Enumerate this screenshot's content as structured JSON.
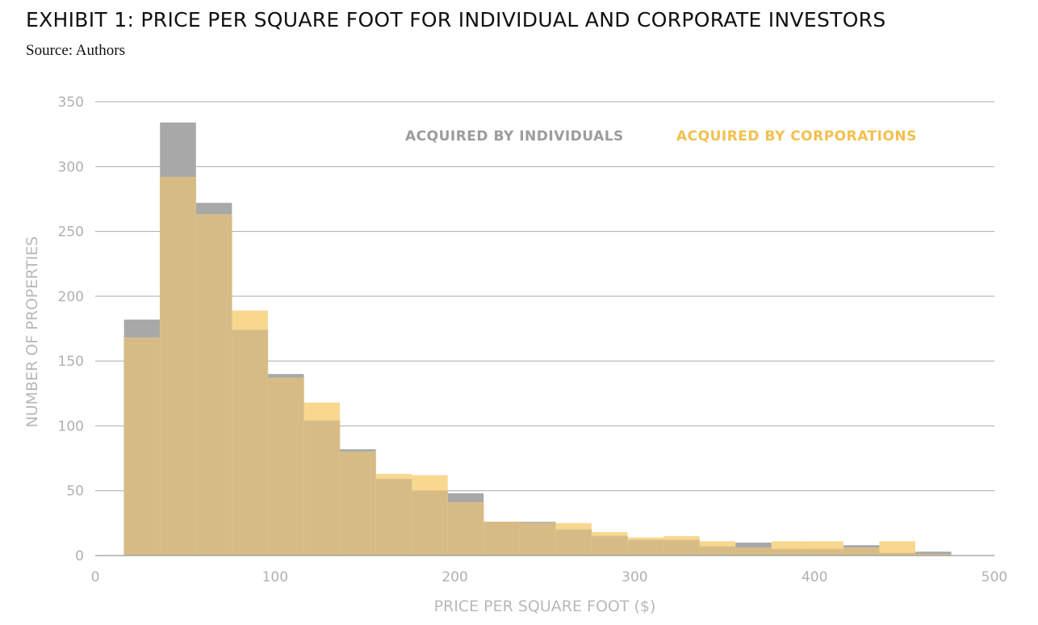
{
  "title": "EXHIBIT 1: PRICE PER SQUARE FOOT FOR INDIVIDUAL AND CORPORATE INVESTORS",
  "subtitle": "Source: Authors",
  "chart_data": {
    "type": "bar",
    "xlabel": "PRICE PER SQUARE FOOT ($)",
    "ylabel": "NUMBER OF PROPERTIES",
    "xlim": [
      0,
      500
    ],
    "ylim": [
      0,
      350
    ],
    "xticks": [
      0,
      100,
      200,
      300,
      400,
      500
    ],
    "yticks": [
      0,
      50,
      100,
      150,
      200,
      250,
      300,
      350
    ],
    "grid": "horizontal",
    "legend_position": "top-right",
    "bins": [
      [
        16,
        36
      ],
      [
        36,
        56
      ],
      [
        56,
        76
      ],
      [
        76,
        96
      ],
      [
        96,
        116
      ],
      [
        116,
        136
      ],
      [
        136,
        156
      ],
      [
        156,
        176
      ],
      [
        176,
        196
      ],
      [
        196,
        216
      ],
      [
        216,
        236
      ],
      [
        236,
        256
      ],
      [
        256,
        276
      ],
      [
        276,
        296
      ],
      [
        296,
        316
      ],
      [
        316,
        336
      ],
      [
        336,
        356
      ],
      [
        356,
        376
      ],
      [
        376,
        396
      ],
      [
        396,
        416
      ],
      [
        416,
        436
      ],
      [
        436,
        456
      ],
      [
        456,
        476
      ]
    ],
    "series": [
      {
        "name": "ACQUIRED BY INDIVIDUALS",
        "color": "#a8a8a8",
        "values": [
          182,
          334,
          272,
          174,
          140,
          104,
          82,
          59,
          50,
          48,
          26,
          26,
          20,
          15,
          12,
          12,
          7,
          10,
          5,
          5,
          8,
          2,
          3
        ]
      },
      {
        "name": "ACQUIRED BY CORPORATIONS",
        "color": "#f5c96a",
        "values": [
          168,
          292,
          263,
          189,
          137,
          118,
          80,
          63,
          62,
          41,
          26,
          25,
          25,
          18,
          14,
          15,
          11,
          6,
          11,
          11,
          6,
          11,
          1
        ]
      }
    ]
  }
}
